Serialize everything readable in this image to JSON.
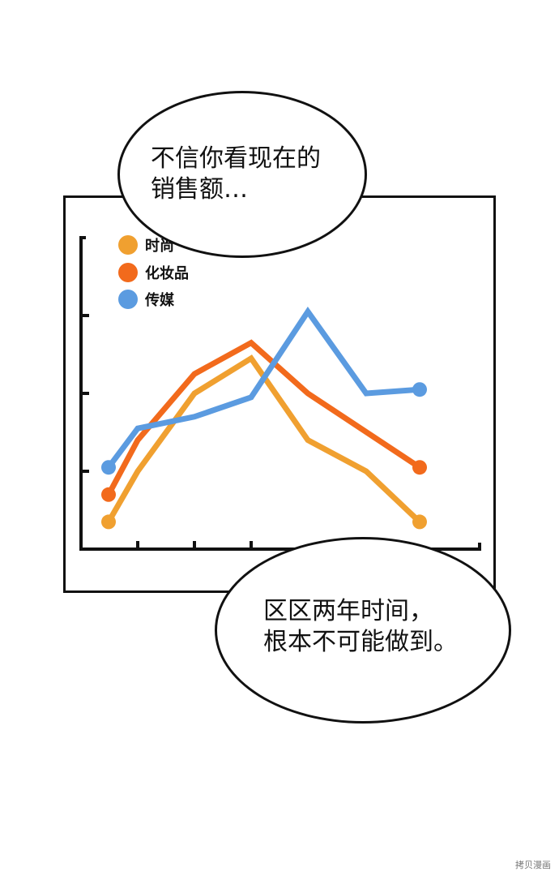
{
  "bubbles": {
    "top": {
      "line1": "不信你看现在的",
      "line2": "销售额…"
    },
    "bottom": {
      "line1": "区区两年时间，",
      "line2": "根本不可能做到。"
    }
  },
  "watermark": "拷贝漫画",
  "chart_data": {
    "type": "line",
    "title": "",
    "xlabel": "",
    "ylabel": "",
    "x": [
      1,
      2,
      3,
      4,
      5,
      6,
      7
    ],
    "ylim": [
      0,
      4
    ],
    "yticks": [
      1,
      2,
      3
    ],
    "grid": false,
    "legend_position": "top-left",
    "series": [
      {
        "name": "时尚",
        "color": "#F0A030",
        "values": [
          0.35,
          1.0,
          2.0,
          2.45,
          1.4,
          1.0,
          0.35
        ],
        "end_markers": true
      },
      {
        "name": "化妆品",
        "color": "#F26A1C",
        "values": [
          0.7,
          1.4,
          2.25,
          2.65,
          2.0,
          null,
          1.05
        ],
        "end_markers": true
      },
      {
        "name": "传媒",
        "color": "#5B9BE0",
        "values": [
          1.05,
          1.55,
          1.7,
          1.95,
          3.05,
          2.0,
          2.05
        ],
        "end_markers": true
      }
    ]
  }
}
